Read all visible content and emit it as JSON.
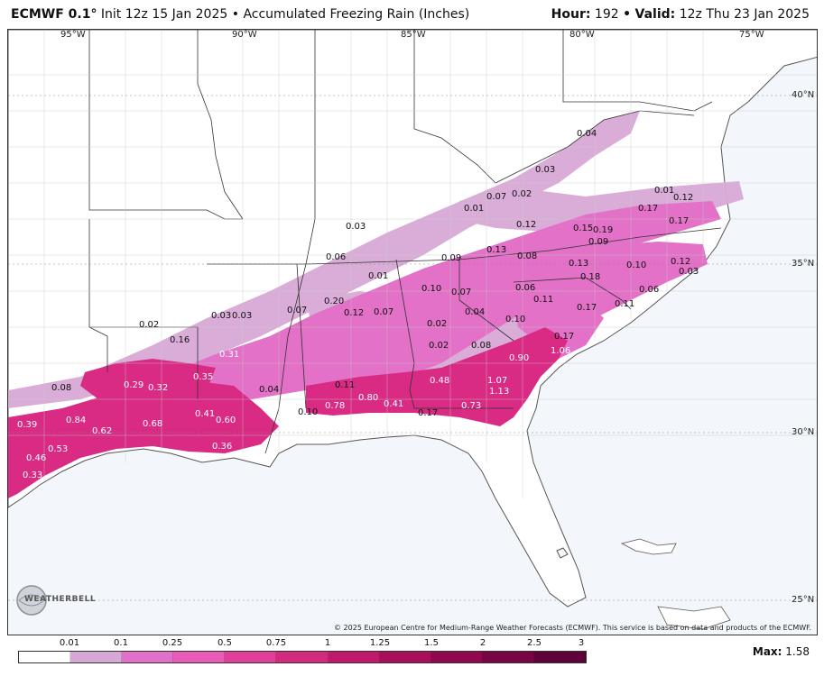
{
  "header": {
    "model": "ECMWF 0.1",
    "degree": "°",
    "init": "Init 12z 15 Jan 2025",
    "separator": "•",
    "product": "Accumulated Freezing Rain (Inches)",
    "hour_label": "Hour:",
    "hour_value": "192",
    "valid_label": "Valid:",
    "valid_value": "12z Thu 23 Jan 2025"
  },
  "longitude_labels": [
    "95°W",
    "90°W",
    "85°W",
    "80°W",
    "75°W"
  ],
  "latitude_labels": [
    "40°N",
    "35°N",
    "30°N",
    "25°N"
  ],
  "value_labels": [
    "0.04",
    "0.03",
    "0.07",
    "0.02",
    "0.01",
    "0.12",
    "0.17",
    "0.17",
    "0.01",
    "0.03",
    "0.12",
    "0.15",
    "0.19",
    "0.09",
    "0.13",
    "0.08",
    "0.09",
    "0.06",
    "0.01",
    "0.13",
    "0.18",
    "0.10",
    "0.12",
    "0.03",
    "0.10",
    "0.07",
    "0.06",
    "0.11",
    "0.06",
    "0.20",
    "0.12",
    "0.07",
    "0.07",
    "0.04",
    "0.17",
    "0.11",
    "0.03",
    "0.03",
    "0.02",
    "0.10",
    "0.02",
    "0.02",
    "0.08",
    "0.17",
    "0.16",
    "0.90",
    "1.06",
    "0.31",
    "0.08",
    "0.29",
    "0.32",
    "0.35",
    "0.04",
    "0.11",
    "0.48",
    "1.07",
    "1.13",
    "0.80",
    "0.78",
    "0.41",
    "0.73",
    "0.41",
    "0.60",
    "0.10",
    "0.17",
    "0.39",
    "0.84",
    "0.68",
    "0.62",
    "0.53",
    "0.46",
    "0.36",
    "0.33"
  ],
  "copyright": "© 2025 European Centre for Medium-Range Weather Forecasts (ECMWF). This service is based on data and products of the ECMWF.",
  "logo_text": "WEATHERBELL",
  "legend": {
    "ticks": [
      "0.01",
      "0.1",
      "0.25",
      "0.5",
      "0.75",
      "1",
      "1.25",
      "1.5",
      "2",
      "2.5",
      "3"
    ],
    "colors": [
      "#ffffff",
      "#d6a8d6",
      "#e070c8",
      "#e85cb8",
      "#e0409a",
      "#d42a7e",
      "#c0186a",
      "#a80e5a",
      "#90084e",
      "#780444",
      "#60023a"
    ]
  },
  "max_label": "Max:",
  "max_value": "1.58",
  "colors": {
    "land": "#ffffff",
    "water": "#f3f6fb",
    "light_band": "#d7a9d6",
    "mid_band": "#e371c8",
    "heavy_band": "#d92a84"
  }
}
